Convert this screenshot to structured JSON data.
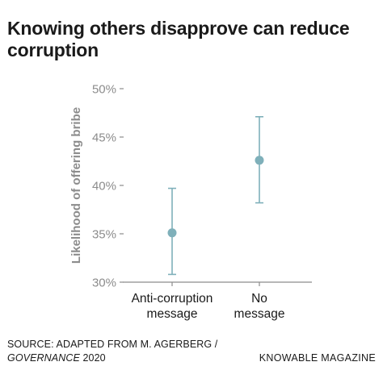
{
  "header": {
    "title": "Knowing others disapprove can reduce corruption"
  },
  "footer": {
    "source_line1": "SOURCE: ADAPTED FROM M. AGERBERG /",
    "source_journal": "GOVERNANCE",
    "source_year": " 2020",
    "brand": "KNOWABLE MAGAZINE"
  },
  "colors": {
    "marker": "#7fb0ba",
    "axis": "#8c8c8c",
    "tick_text": "#8c8c8c",
    "ylabel": "#8c8c8c",
    "category_text": "#1a1a1a"
  },
  "chart_data": {
    "type": "scatter",
    "title": "Knowing others disapprove can reduce corruption",
    "xlabel": "",
    "ylabel": "Likelihood of offering bribe",
    "categories": [
      "Anti-corruption message",
      "No message"
    ],
    "category_lines": [
      [
        "Anti-corruption",
        "message"
      ],
      [
        "No",
        "message"
      ]
    ],
    "series": [
      {
        "values": [
          35.1,
          42.6
        ],
        "error_low": [
          30.8,
          38.2
        ],
        "error_high": [
          39.7,
          47.1
        ]
      }
    ],
    "ylim": [
      30,
      50
    ],
    "yticks": [
      30,
      35,
      40,
      45,
      50
    ],
    "ytick_labels": [
      "30%",
      "35%",
      "40%",
      "45%",
      "50%"
    ],
    "grid": false,
    "legend": "none"
  }
}
